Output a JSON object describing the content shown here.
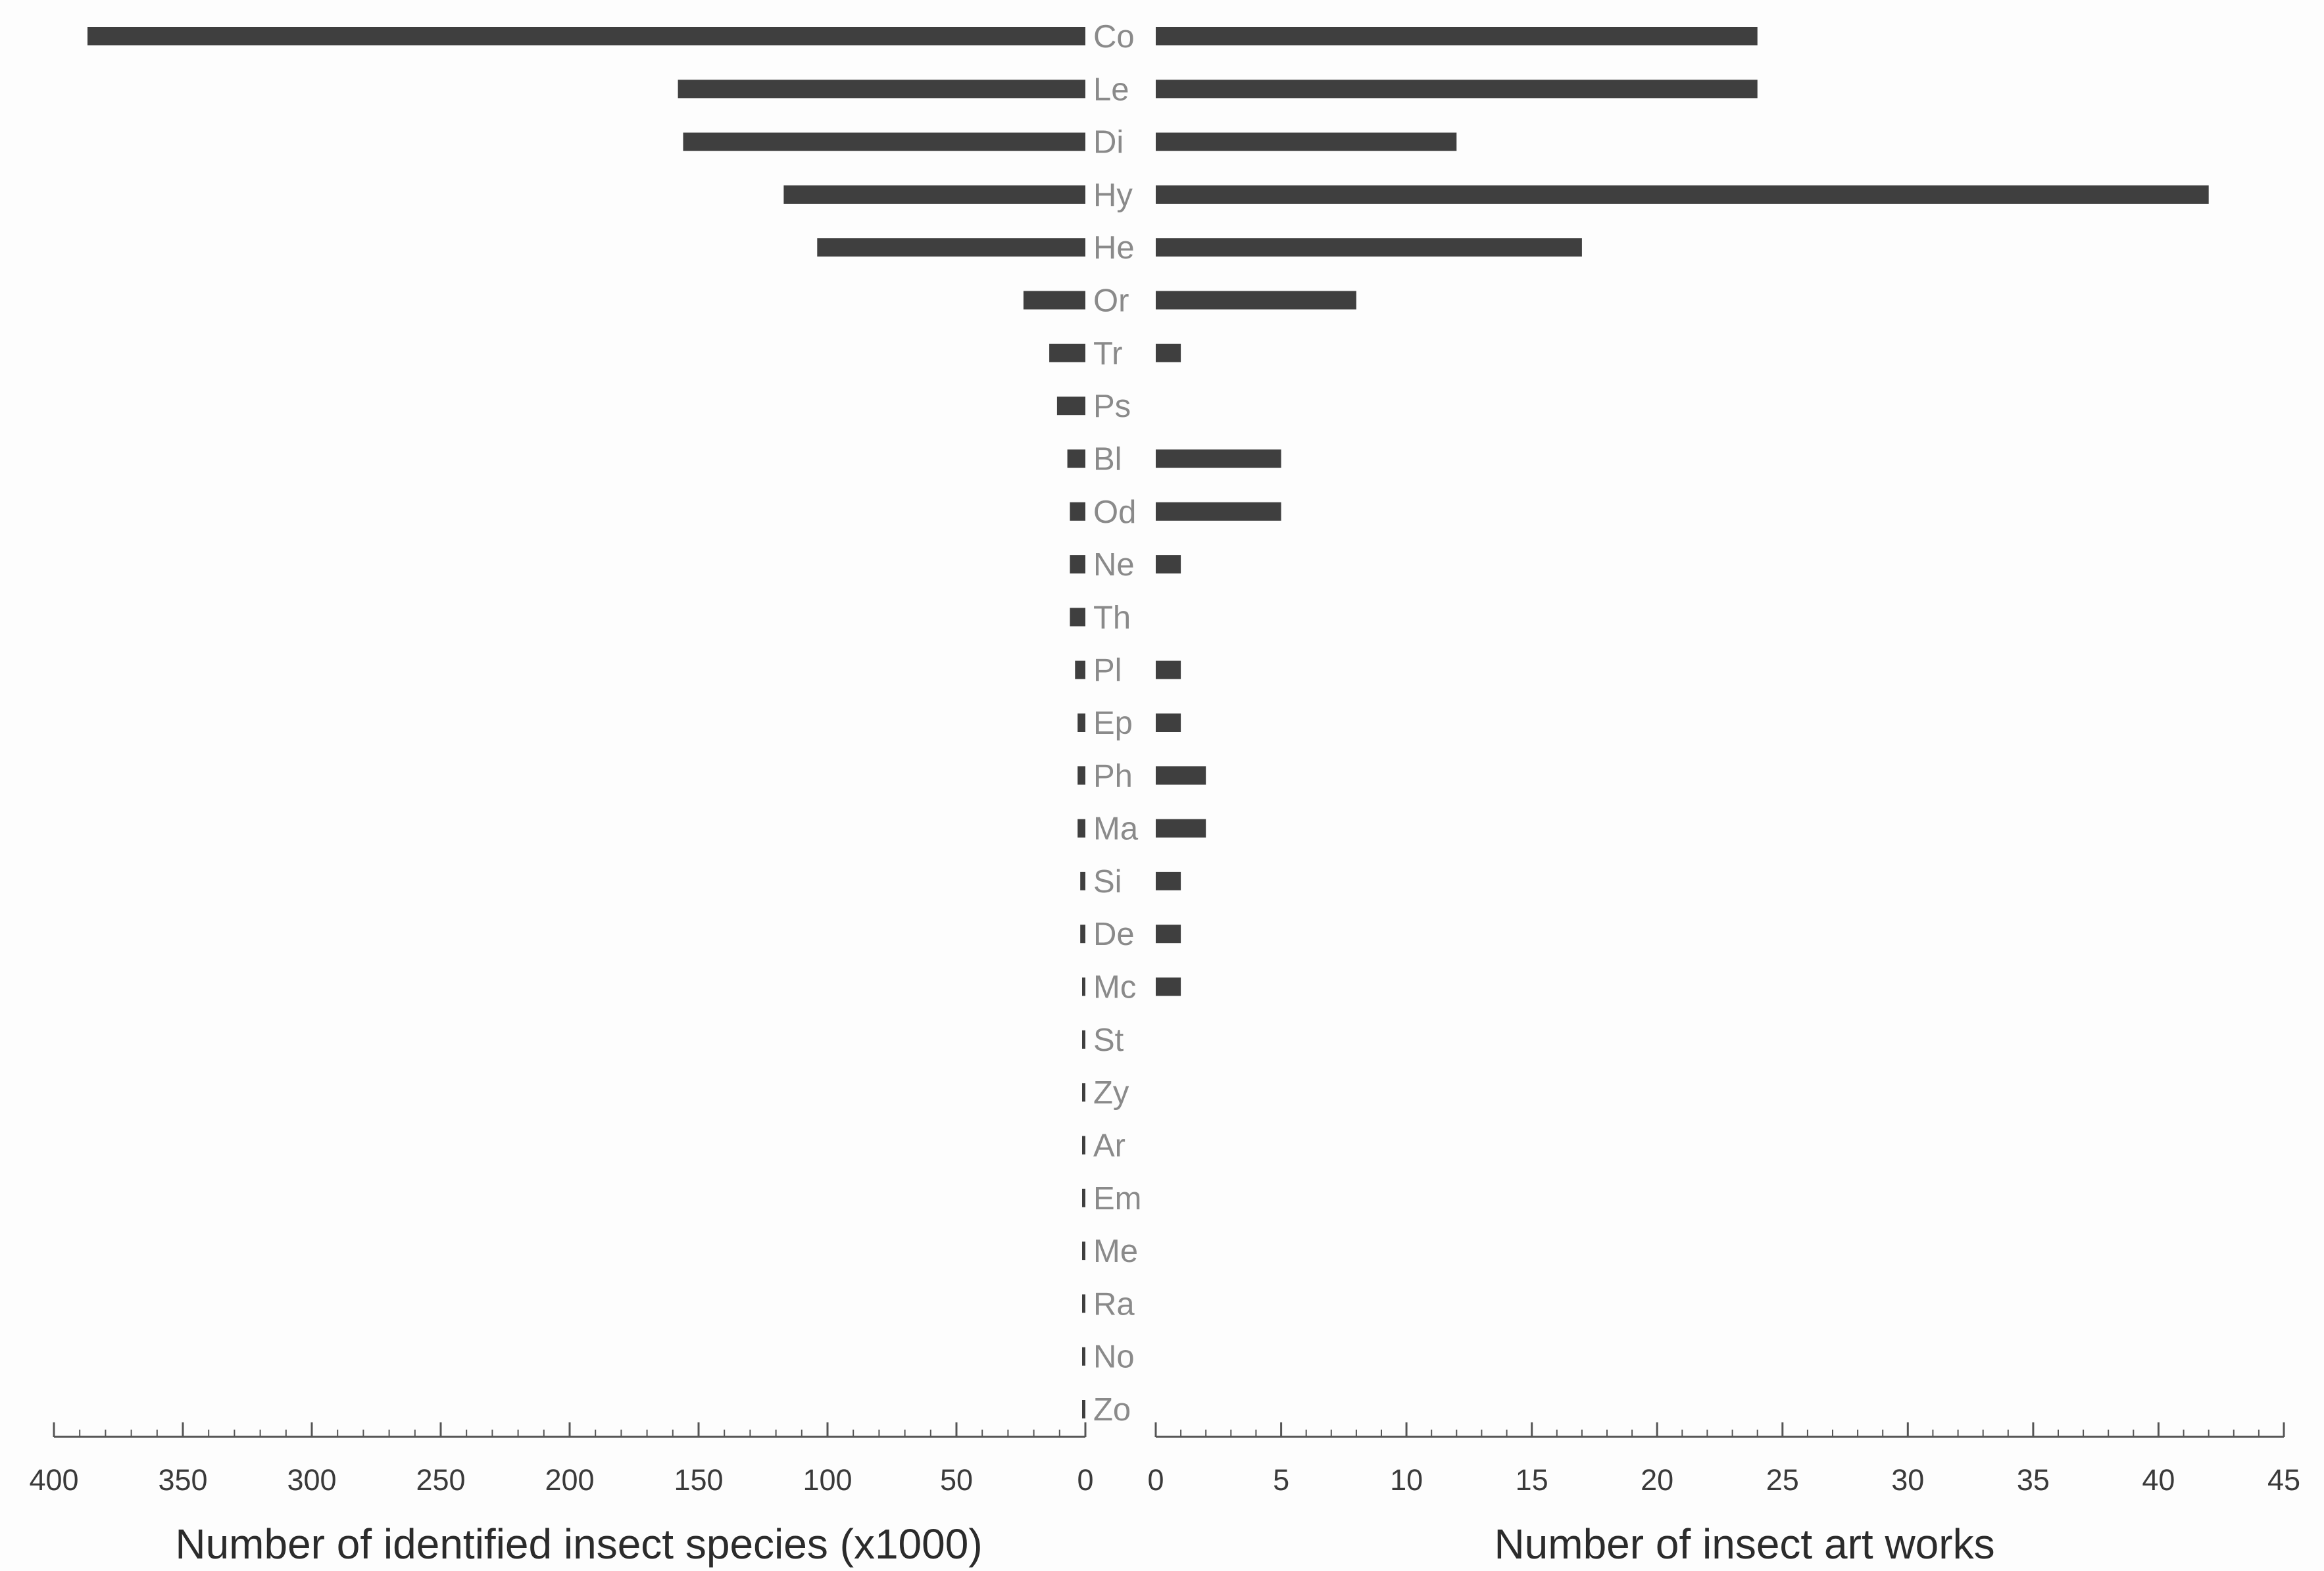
{
  "chart_data": {
    "type": "bar",
    "orientation": "horizontal-butterfly",
    "categories": [
      "Co",
      "Le",
      "Di",
      "Hy",
      "He",
      "Or",
      "Tr",
      "Ps",
      "Bl",
      "Od",
      "Ne",
      "Th",
      "Pl",
      "Ep",
      "Ph",
      "Ma",
      "Si",
      "De",
      "Mc",
      "St",
      "Zy",
      "Ar",
      "Em",
      "Me",
      "Ra",
      "No",
      "Zo"
    ],
    "series": [
      {
        "side": "left",
        "values": [
          387,
          158,
          156,
          117,
          104,
          24,
          14,
          11,
          7,
          6,
          6,
          6,
          4,
          3,
          3,
          3,
          2,
          2,
          1,
          1,
          1,
          1,
          1,
          1,
          1,
          1,
          1
        ]
      },
      {
        "side": "right",
        "values": [
          24,
          24,
          12,
          42,
          17,
          8,
          1,
          0,
          5,
          5,
          1,
          0,
          1,
          1,
          2,
          2,
          1,
          1,
          1,
          0,
          0,
          0,
          0,
          0,
          0,
          0,
          0
        ]
      }
    ],
    "left_axis": {
      "xlabel": "Number of identified insect species (x1000)",
      "xlim": [
        400,
        0
      ],
      "ticks": [
        "400",
        "350",
        "300",
        "250",
        "200",
        "150",
        "100",
        "50",
        "0"
      ],
      "reversed": true
    },
    "right_axis": {
      "xlabel": "Number of insect art works",
      "xlim": [
        0,
        45
      ],
      "ticks": [
        "0",
        "5",
        "10",
        "15",
        "20",
        "25",
        "30",
        "35",
        "40",
        "45"
      ]
    },
    "grid": false,
    "legend": "none",
    "bar_color": "#3f3f3f"
  }
}
